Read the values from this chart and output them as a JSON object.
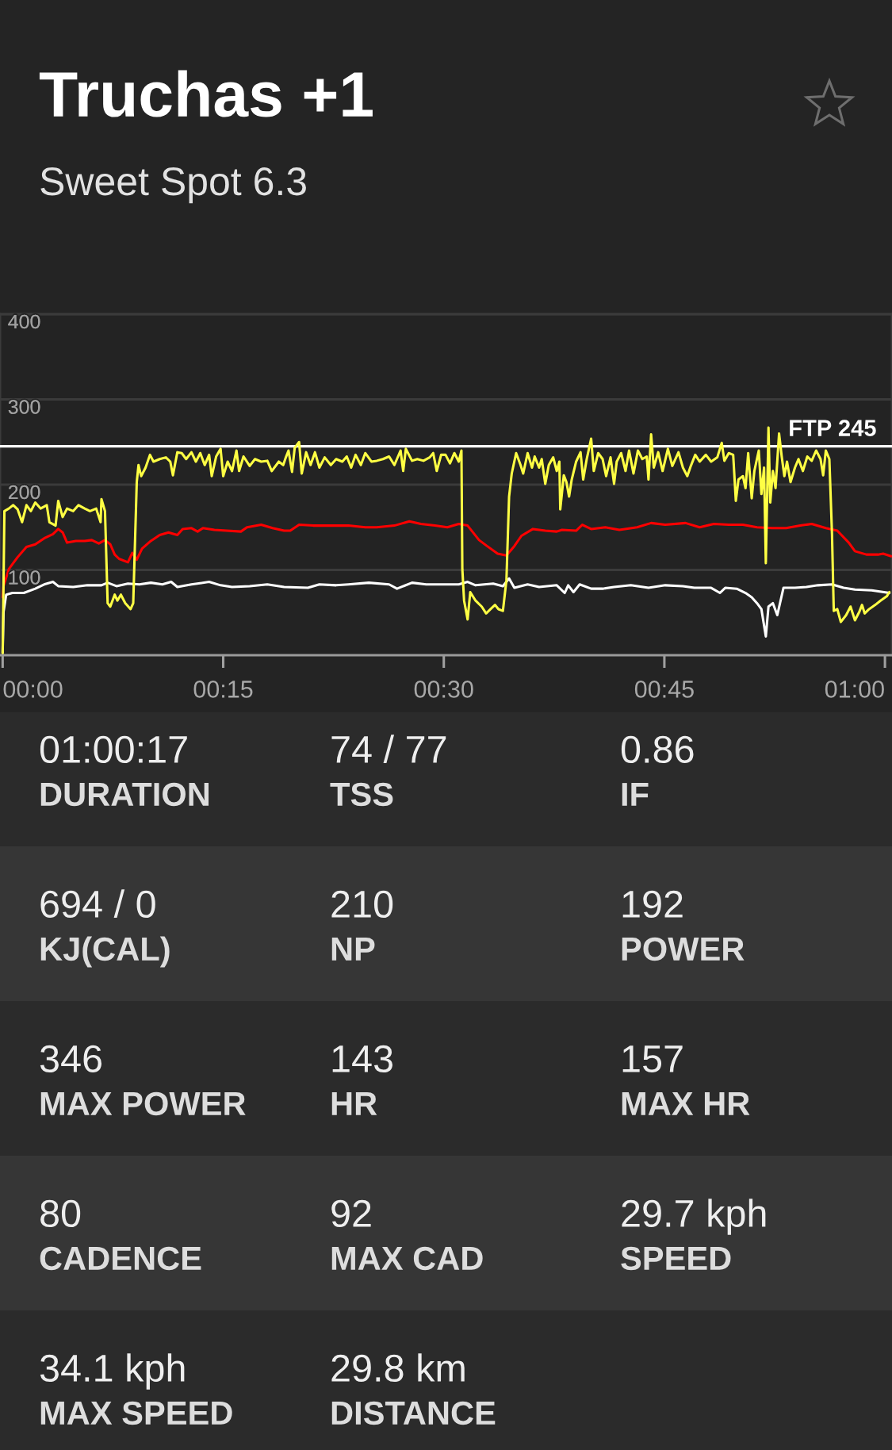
{
  "chart_data": [
    {
      "type": "line",
      "title": "Truchas +1",
      "subtitle": "Sweet Spot 6.3",
      "xlim": [
        -0.003,
        1.008
      ],
      "xticks": [
        {
          "value": 0,
          "label": "00:00"
        },
        {
          "value": 0.25,
          "label": "00:15"
        },
        {
          "value": 0.5,
          "label": "00:30"
        },
        {
          "value": 0.75,
          "label": "00:45"
        },
        {
          "value": 1,
          "label": "01:00"
        }
      ],
      "ylim": [
        0,
        400
      ],
      "yticks": [
        100,
        200,
        300,
        400
      ],
      "grid": "y",
      "ref_lines": [
        {
          "axis": "y",
          "value": 245,
          "label": "FTP 245",
          "color": "#ffffff"
        }
      ],
      "series": [
        {
          "color": "#ffffff",
          "x": [
            0,
            0.001,
            0.004,
            0.011,
            0.024,
            0.037,
            0.047,
            0.057,
            0.063,
            0.08,
            0.096,
            0.112,
            0.119,
            0.129,
            0.142,
            0.155,
            0.168,
            0.181,
            0.191,
            0.198,
            0.214,
            0.234,
            0.247,
            0.26,
            0.28,
            0.3,
            0.319,
            0.346,
            0.359,
            0.378,
            0.392,
            0.415,
            0.438,
            0.447,
            0.464,
            0.48,
            0.497,
            0.517,
            0.527,
            0.536,
            0.556,
            0.567,
            0.574,
            0.58,
            0.595,
            0.608,
            0.628,
            0.637,
            0.641,
            0.647,
            0.654,
            0.667,
            0.68,
            0.693,
            0.712,
            0.732,
            0.751,
            0.771,
            0.784,
            0.803,
            0.813,
            0.819,
            0.832,
            0.842,
            0.849,
            0.855,
            0.86,
            0.865,
            0.868,
            0.873,
            0.878,
            0.885,
            0.898,
            0.911,
            0.924,
            0.94,
            0.953,
            0.966,
            0.985,
            1.005
          ],
          "values": [
            3,
            51,
            71,
            73,
            73,
            78,
            83,
            86,
            81,
            80,
            82,
            82,
            85,
            81,
            84,
            83,
            85,
            83,
            86,
            80,
            83,
            86,
            82,
            80,
            81,
            83,
            80,
            79,
            83,
            82,
            83,
            85,
            83,
            78,
            85,
            83,
            83,
            83,
            86,
            82,
            84,
            81,
            90,
            79,
            83,
            80,
            82,
            73,
            82,
            74,
            83,
            78,
            78,
            80,
            82,
            79,
            82,
            81,
            79,
            79,
            73,
            79,
            78,
            73,
            68,
            61,
            54,
            22,
            57,
            61,
            47,
            79,
            79,
            80,
            82,
            83,
            79,
            77,
            76,
            73
          ]
        },
        {
          "color": "#ff0000",
          "x": [
            0,
            0.001,
            0.007,
            0.017,
            0.027,
            0.037,
            0.047,
            0.057,
            0.063,
            0.068,
            0.073,
            0.083,
            0.093,
            0.101,
            0.109,
            0.116,
            0.122,
            0.127,
            0.132,
            0.142,
            0.147,
            0.152,
            0.158,
            0.168,
            0.178,
            0.188,
            0.198,
            0.204,
            0.214,
            0.221,
            0.227,
            0.24,
            0.254,
            0.27,
            0.277,
            0.293,
            0.306,
            0.319,
            0.326,
            0.336,
            0.352,
            0.372,
            0.392,
            0.411,
            0.424,
            0.444,
            0.461,
            0.474,
            0.49,
            0.504,
            0.517,
            0.527,
            0.54,
            0.549,
            0.561,
            0.571,
            0.58,
            0.588,
            0.601,
            0.615,
            0.628,
            0.634,
            0.65,
            0.657,
            0.667,
            0.683,
            0.699,
            0.719,
            0.735,
            0.751,
            0.774,
            0.79,
            0.806,
            0.823,
            0.839,
            0.855,
            0.872,
            0.888,
            0.904,
            0.917,
            0.933,
            0.946,
            0.959,
            0.966,
            0.979,
            0.992,
            0.998,
            1.007
          ],
          "values": [
            68,
            81,
            101,
            115,
            127,
            130,
            137,
            142,
            148,
            144,
            132,
            134,
            134,
            135,
            131,
            135,
            130,
            118,
            113,
            109,
            120,
            112,
            125,
            134,
            141,
            144,
            141,
            148,
            149,
            145,
            149,
            147,
            146,
            145,
            150,
            153,
            149,
            146,
            146,
            153,
            152,
            152,
            152,
            150,
            150,
            152,
            157,
            154,
            152,
            150,
            154,
            152,
            135,
            128,
            119,
            117,
            128,
            140,
            148,
            146,
            145,
            147,
            146,
            153,
            148,
            150,
            147,
            150,
            155,
            153,
            155,
            150,
            154,
            153,
            153,
            150,
            149,
            149,
            152,
            154,
            149,
            146,
            132,
            122,
            118,
            118,
            119,
            116
          ]
        },
        {
          "color": "#ffff44",
          "x": [
            0,
            0.002,
            0.007,
            0.012,
            0.017,
            0.022,
            0.027,
            0.032,
            0.037,
            0.043,
            0.05,
            0.053,
            0.06,
            0.063,
            0.068,
            0.073,
            0.08,
            0.086,
            0.093,
            0.099,
            0.106,
            0.111,
            0.112,
            0.116,
            0.119,
            0.122,
            0.127,
            0.13,
            0.134,
            0.139,
            0.145,
            0.148,
            0.152,
            0.154,
            0.157,
            0.162,
            0.167,
            0.171,
            0.178,
            0.185,
            0.19,
            0.193,
            0.198,
            0.203,
            0.208,
            0.214,
            0.219,
            0.224,
            0.229,
            0.234,
            0.237,
            0.242,
            0.247,
            0.25,
            0.255,
            0.26,
            0.265,
            0.268,
            0.273,
            0.28,
            0.286,
            0.293,
            0.3,
            0.305,
            0.313,
            0.318,
            0.321,
            0.324,
            0.328,
            0.331,
            0.336,
            0.339,
            0.344,
            0.349,
            0.354,
            0.359,
            0.365,
            0.372,
            0.378,
            0.385,
            0.39,
            0.395,
            0.4,
            0.406,
            0.411,
            0.418,
            0.424,
            0.431,
            0.438,
            0.444,
            0.451,
            0.454,
            0.457,
            0.464,
            0.47,
            0.477,
            0.484,
            0.488,
            0.492,
            0.497,
            0.502,
            0.507,
            0.512,
            0.517,
            0.52,
            0.521,
            0.523,
            0.527,
            0.53,
            0.536,
            0.543,
            0.548,
            0.553,
            0.558,
            0.562,
            0.567,
            0.571,
            0.574,
            0.577,
            0.582,
            0.587,
            0.59,
            0.595,
            0.6,
            0.603,
            0.608,
            0.611,
            0.615,
            0.619,
            0.624,
            0.628,
            0.631,
            0.632,
            0.636,
            0.639,
            0.642,
            0.645,
            0.65,
            0.655,
            0.658,
            0.662,
            0.667,
            0.67,
            0.675,
            0.68,
            0.684,
            0.689,
            0.693,
            0.696,
            0.701,
            0.706,
            0.71,
            0.715,
            0.72,
            0.725,
            0.73,
            0.732,
            0.735,
            0.738,
            0.743,
            0.748,
            0.754,
            0.759,
            0.766,
            0.771,
            0.776,
            0.78,
            0.785,
            0.79,
            0.797,
            0.803,
            0.81,
            0.815,
            0.818,
            0.823,
            0.828,
            0.831,
            0.834,
            0.839,
            0.842,
            0.845,
            0.849,
            0.852,
            0.857,
            0.86,
            0.863,
            0.865,
            0.868,
            0.87,
            0.873,
            0.876,
            0.88,
            0.883,
            0.886,
            0.889,
            0.893,
            0.898,
            0.902,
            0.907,
            0.912,
            0.917,
            0.922,
            0.927,
            0.93,
            0.933,
            0.937,
            0.94,
            0.942,
            0.946,
            0.95,
            0.956,
            0.961,
            0.966,
            0.971,
            0.974,
            0.977,
            0.982,
            0.989,
            0.995,
            1.002,
            1.005
          ],
          "values": [
            2,
            169,
            172,
            176,
            171,
            156,
            176,
            169,
            179,
            172,
            176,
            156,
            152,
            181,
            162,
            172,
            169,
            176,
            172,
            169,
            172,
            156,
            183,
            169,
            61,
            57,
            71,
            64,
            71,
            61,
            54,
            61,
            203,
            223,
            210,
            220,
            235,
            227,
            230,
            232,
            227,
            211,
            238,
            237,
            230,
            238,
            227,
            237,
            223,
            235,
            210,
            233,
            242,
            210,
            227,
            216,
            240,
            216,
            233,
            222,
            230,
            227,
            228,
            216,
            227,
            223,
            232,
            240,
            215,
            243,
            250,
            213,
            238,
            223,
            238,
            220,
            232,
            223,
            230,
            227,
            233,
            220,
            235,
            223,
            237,
            227,
            228,
            230,
            233,
            223,
            240,
            216,
            242,
            228,
            230,
            228,
            232,
            237,
            216,
            235,
            235,
            225,
            237,
            227,
            240,
            101,
            64,
            42,
            74,
            64,
            57,
            49,
            54,
            59,
            54,
            52,
            88,
            186,
            213,
            237,
            223,
            213,
            237,
            220,
            233,
            220,
            230,
            201,
            223,
            232,
            216,
            227,
            171,
            211,
            203,
            186,
            206,
            227,
            238,
            206,
            230,
            254,
            216,
            237,
            230,
            210,
            232,
            201,
            227,
            237,
            216,
            240,
            213,
            240,
            230,
            233,
            206,
            259,
            220,
            238,
            216,
            242,
            222,
            238,
            220,
            210,
            222,
            235,
            227,
            235,
            227,
            232,
            249,
            228,
            237,
            235,
            181,
            206,
            210,
            196,
            237,
            184,
            216,
            240,
            189,
            220,
            108,
            267,
            179,
            216,
            196,
            260,
            233,
            210,
            227,
            203,
            220,
            230,
            216,
            233,
            228,
            240,
            230,
            211,
            240,
            230,
            142,
            52,
            54,
            39,
            47,
            57,
            41,
            51,
            59,
            49,
            54,
            59,
            64,
            69,
            74
          ]
        }
      ]
    },
    {
      "type": "other",
      "annotations": [
        "01:00:17",
        "DURATION",
        "74 / 77",
        "TSS",
        "0.86",
        "IF",
        "694 / 0",
        "KJ(CAL)",
        "210",
        "NP",
        "192",
        "POWER",
        "346",
        "MAX POWER",
        "143",
        "HR",
        "157",
        "MAX HR",
        "80",
        "CADENCE",
        "92",
        "MAX CAD",
        "29.7 kph",
        "SPEED",
        "34.1 kph",
        "MAX SPEED",
        "29.8 km",
        "DISTANCE"
      ]
    }
  ]
}
